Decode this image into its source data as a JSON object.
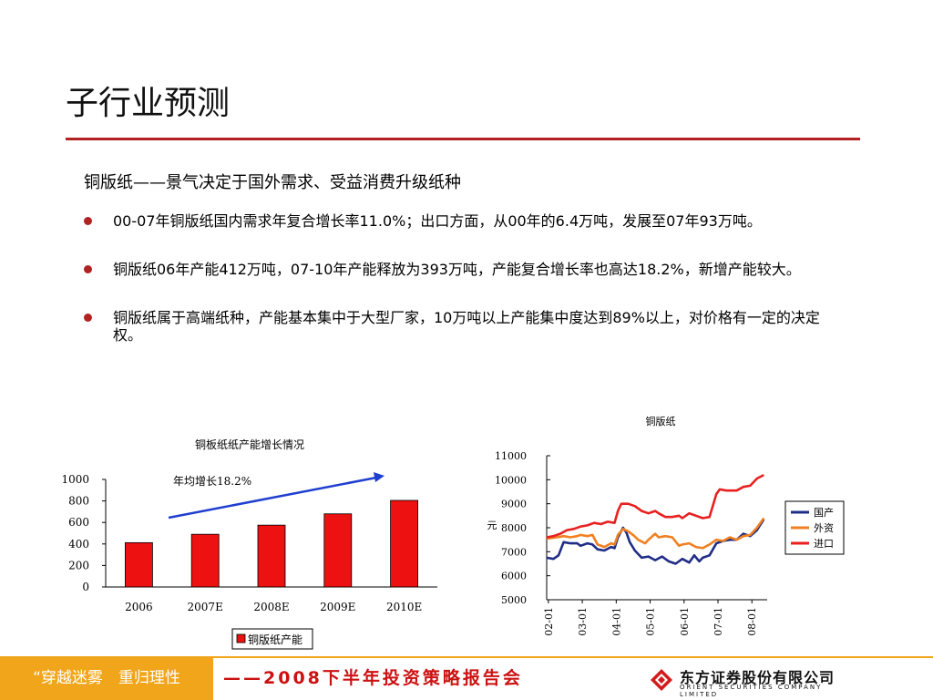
{
  "slide": {
    "title": "子行业预测",
    "subheading": "铜版纸——景气决定于国外需求、受益消费升级纸种",
    "bullets": [
      "00-07年铜版纸国内需求年复合增长率11.0%；出口方面，从00年的6.4万吨，发展至07年93万吨。",
      "铜版纸06年产能412万吨，07-10年产能释放为393万吨，产能复合增长率也高达18.2%，新增产能较大。",
      "铜版纸属于高端纸种，产能基本集中于大型厂家，10万吨以上产能集中度达到89%以上，对价格有一定的决定权。"
    ]
  },
  "footer": {
    "slogan": "“穿越迷雾　重归理性",
    "event": "——2008下半年投资策略报告会",
    "logo_name": "东方证券股份有限公司",
    "logo_en": "ORIENT SECURITIES COMPANY LIMITED"
  },
  "colors": {
    "accent": "#b22222",
    "bar": "#ee1111",
    "footer": "#f0a51a"
  },
  "chart_data": [
    {
      "type": "bar",
      "title": "铜板纸纸产能增长情况",
      "categories": [
        "2006",
        "2007E",
        "2008E",
        "2009E",
        "2010E"
      ],
      "series": [
        {
          "name": "铜版纸产能",
          "values": [
            412,
            490,
            575,
            680,
            805
          ]
        }
      ],
      "yticks": [
        0,
        200,
        400,
        600,
        800,
        1000
      ],
      "ylim": [
        0,
        1000
      ],
      "annotation": "年均增长18.2%",
      "legend": "bottom"
    },
    {
      "type": "line",
      "title": "铜版纸",
      "ylabel": "元",
      "ylim": [
        5000,
        11000
      ],
      "yticks": [
        5000,
        6000,
        7000,
        8000,
        9000,
        10000,
        11000
      ],
      "xticks": [
        "02-01",
        "03-01",
        "04-01",
        "05-01",
        "06-01",
        "07-01",
        "08-01"
      ],
      "xlim": [
        2002.0,
        2008.5
      ],
      "legend": "right",
      "series": [
        {
          "name": "国产",
          "color": "#1f2d86",
          "points": [
            [
              2002.0,
              6750
            ],
            [
              2002.2,
              6700
            ],
            [
              2002.35,
              6850
            ],
            [
              2002.5,
              7400
            ],
            [
              2002.7,
              7350
            ],
            [
              2002.9,
              7350
            ],
            [
              2003.0,
              7250
            ],
            [
              2003.2,
              7350
            ],
            [
              2003.35,
              7300
            ],
            [
              2003.5,
              7100
            ],
            [
              2003.7,
              7050
            ],
            [
              2003.9,
              7200
            ],
            [
              2004.0,
              7150
            ],
            [
              2004.1,
              7600
            ],
            [
              2004.25,
              8000
            ],
            [
              2004.35,
              7800
            ],
            [
              2004.45,
              7400
            ],
            [
              2004.6,
              7050
            ],
            [
              2004.8,
              6750
            ],
            [
              2005.0,
              6800
            ],
            [
              2005.2,
              6650
            ],
            [
              2005.4,
              6800
            ],
            [
              2005.6,
              6600
            ],
            [
              2005.8,
              6500
            ],
            [
              2006.0,
              6700
            ],
            [
              2006.2,
              6550
            ],
            [
              2006.35,
              6850
            ],
            [
              2006.5,
              6600
            ],
            [
              2006.6,
              6750
            ],
            [
              2006.8,
              6850
            ],
            [
              2007.0,
              7350
            ],
            [
              2007.2,
              7450
            ],
            [
              2007.4,
              7500
            ],
            [
              2007.6,
              7500
            ],
            [
              2007.8,
              7750
            ],
            [
              2008.0,
              7650
            ],
            [
              2008.2,
              7900
            ],
            [
              2008.4,
              8350
            ]
          ]
        },
        {
          "name": "外资",
          "color": "#f08020",
          "points": [
            [
              2002.0,
              7550
            ],
            [
              2002.3,
              7600
            ],
            [
              2002.5,
              7650
            ],
            [
              2002.7,
              7600
            ],
            [
              2002.9,
              7650
            ],
            [
              2003.0,
              7700
            ],
            [
              2003.2,
              7650
            ],
            [
              2003.35,
              7700
            ],
            [
              2003.5,
              7300
            ],
            [
              2003.7,
              7200
            ],
            [
              2003.9,
              7350
            ],
            [
              2004.0,
              7300
            ],
            [
              2004.1,
              7700
            ],
            [
              2004.25,
              7950
            ],
            [
              2004.4,
              7850
            ],
            [
              2004.55,
              7700
            ],
            [
              2004.7,
              7500
            ],
            [
              2004.9,
              7350
            ],
            [
              2005.0,
              7500
            ],
            [
              2005.2,
              7750
            ],
            [
              2005.3,
              7600
            ],
            [
              2005.5,
              7650
            ],
            [
              2005.7,
              7600
            ],
            [
              2005.9,
              7250
            ],
            [
              2006.0,
              7300
            ],
            [
              2006.2,
              7350
            ],
            [
              2006.4,
              7200
            ],
            [
              2006.6,
              7150
            ],
            [
              2006.8,
              7300
            ],
            [
              2007.0,
              7500
            ],
            [
              2007.2,
              7450
            ],
            [
              2007.4,
              7600
            ],
            [
              2007.6,
              7500
            ],
            [
              2007.8,
              7650
            ],
            [
              2008.0,
              7700
            ],
            [
              2008.2,
              8000
            ],
            [
              2008.4,
              8400
            ]
          ]
        },
        {
          "name": "进口",
          "color": "#e82020",
          "points": [
            [
              2002.0,
              7600
            ],
            [
              2002.2,
              7650
            ],
            [
              2002.4,
              7750
            ],
            [
              2002.6,
              7900
            ],
            [
              2002.8,
              7950
            ],
            [
              2003.0,
              8050
            ],
            [
              2003.2,
              8100
            ],
            [
              2003.4,
              8200
            ],
            [
              2003.6,
              8150
            ],
            [
              2003.8,
              8250
            ],
            [
              2004.0,
              8200
            ],
            [
              2004.1,
              8700
            ],
            [
              2004.2,
              9000
            ],
            [
              2004.4,
              9000
            ],
            [
              2004.6,
              8900
            ],
            [
              2004.8,
              8700
            ],
            [
              2005.0,
              8600
            ],
            [
              2005.2,
              8700
            ],
            [
              2005.3,
              8600
            ],
            [
              2005.5,
              8450
            ],
            [
              2005.7,
              8450
            ],
            [
              2005.9,
              8500
            ],
            [
              2006.0,
              8400
            ],
            [
              2006.2,
              8600
            ],
            [
              2006.4,
              8500
            ],
            [
              2006.6,
              8400
            ],
            [
              2006.8,
              8450
            ],
            [
              2007.0,
              9400
            ],
            [
              2007.1,
              9600
            ],
            [
              2007.3,
              9550
            ],
            [
              2007.6,
              9550
            ],
            [
              2007.8,
              9700
            ],
            [
              2008.0,
              9750
            ],
            [
              2008.2,
              10050
            ],
            [
              2008.4,
              10200
            ]
          ]
        }
      ]
    }
  ]
}
